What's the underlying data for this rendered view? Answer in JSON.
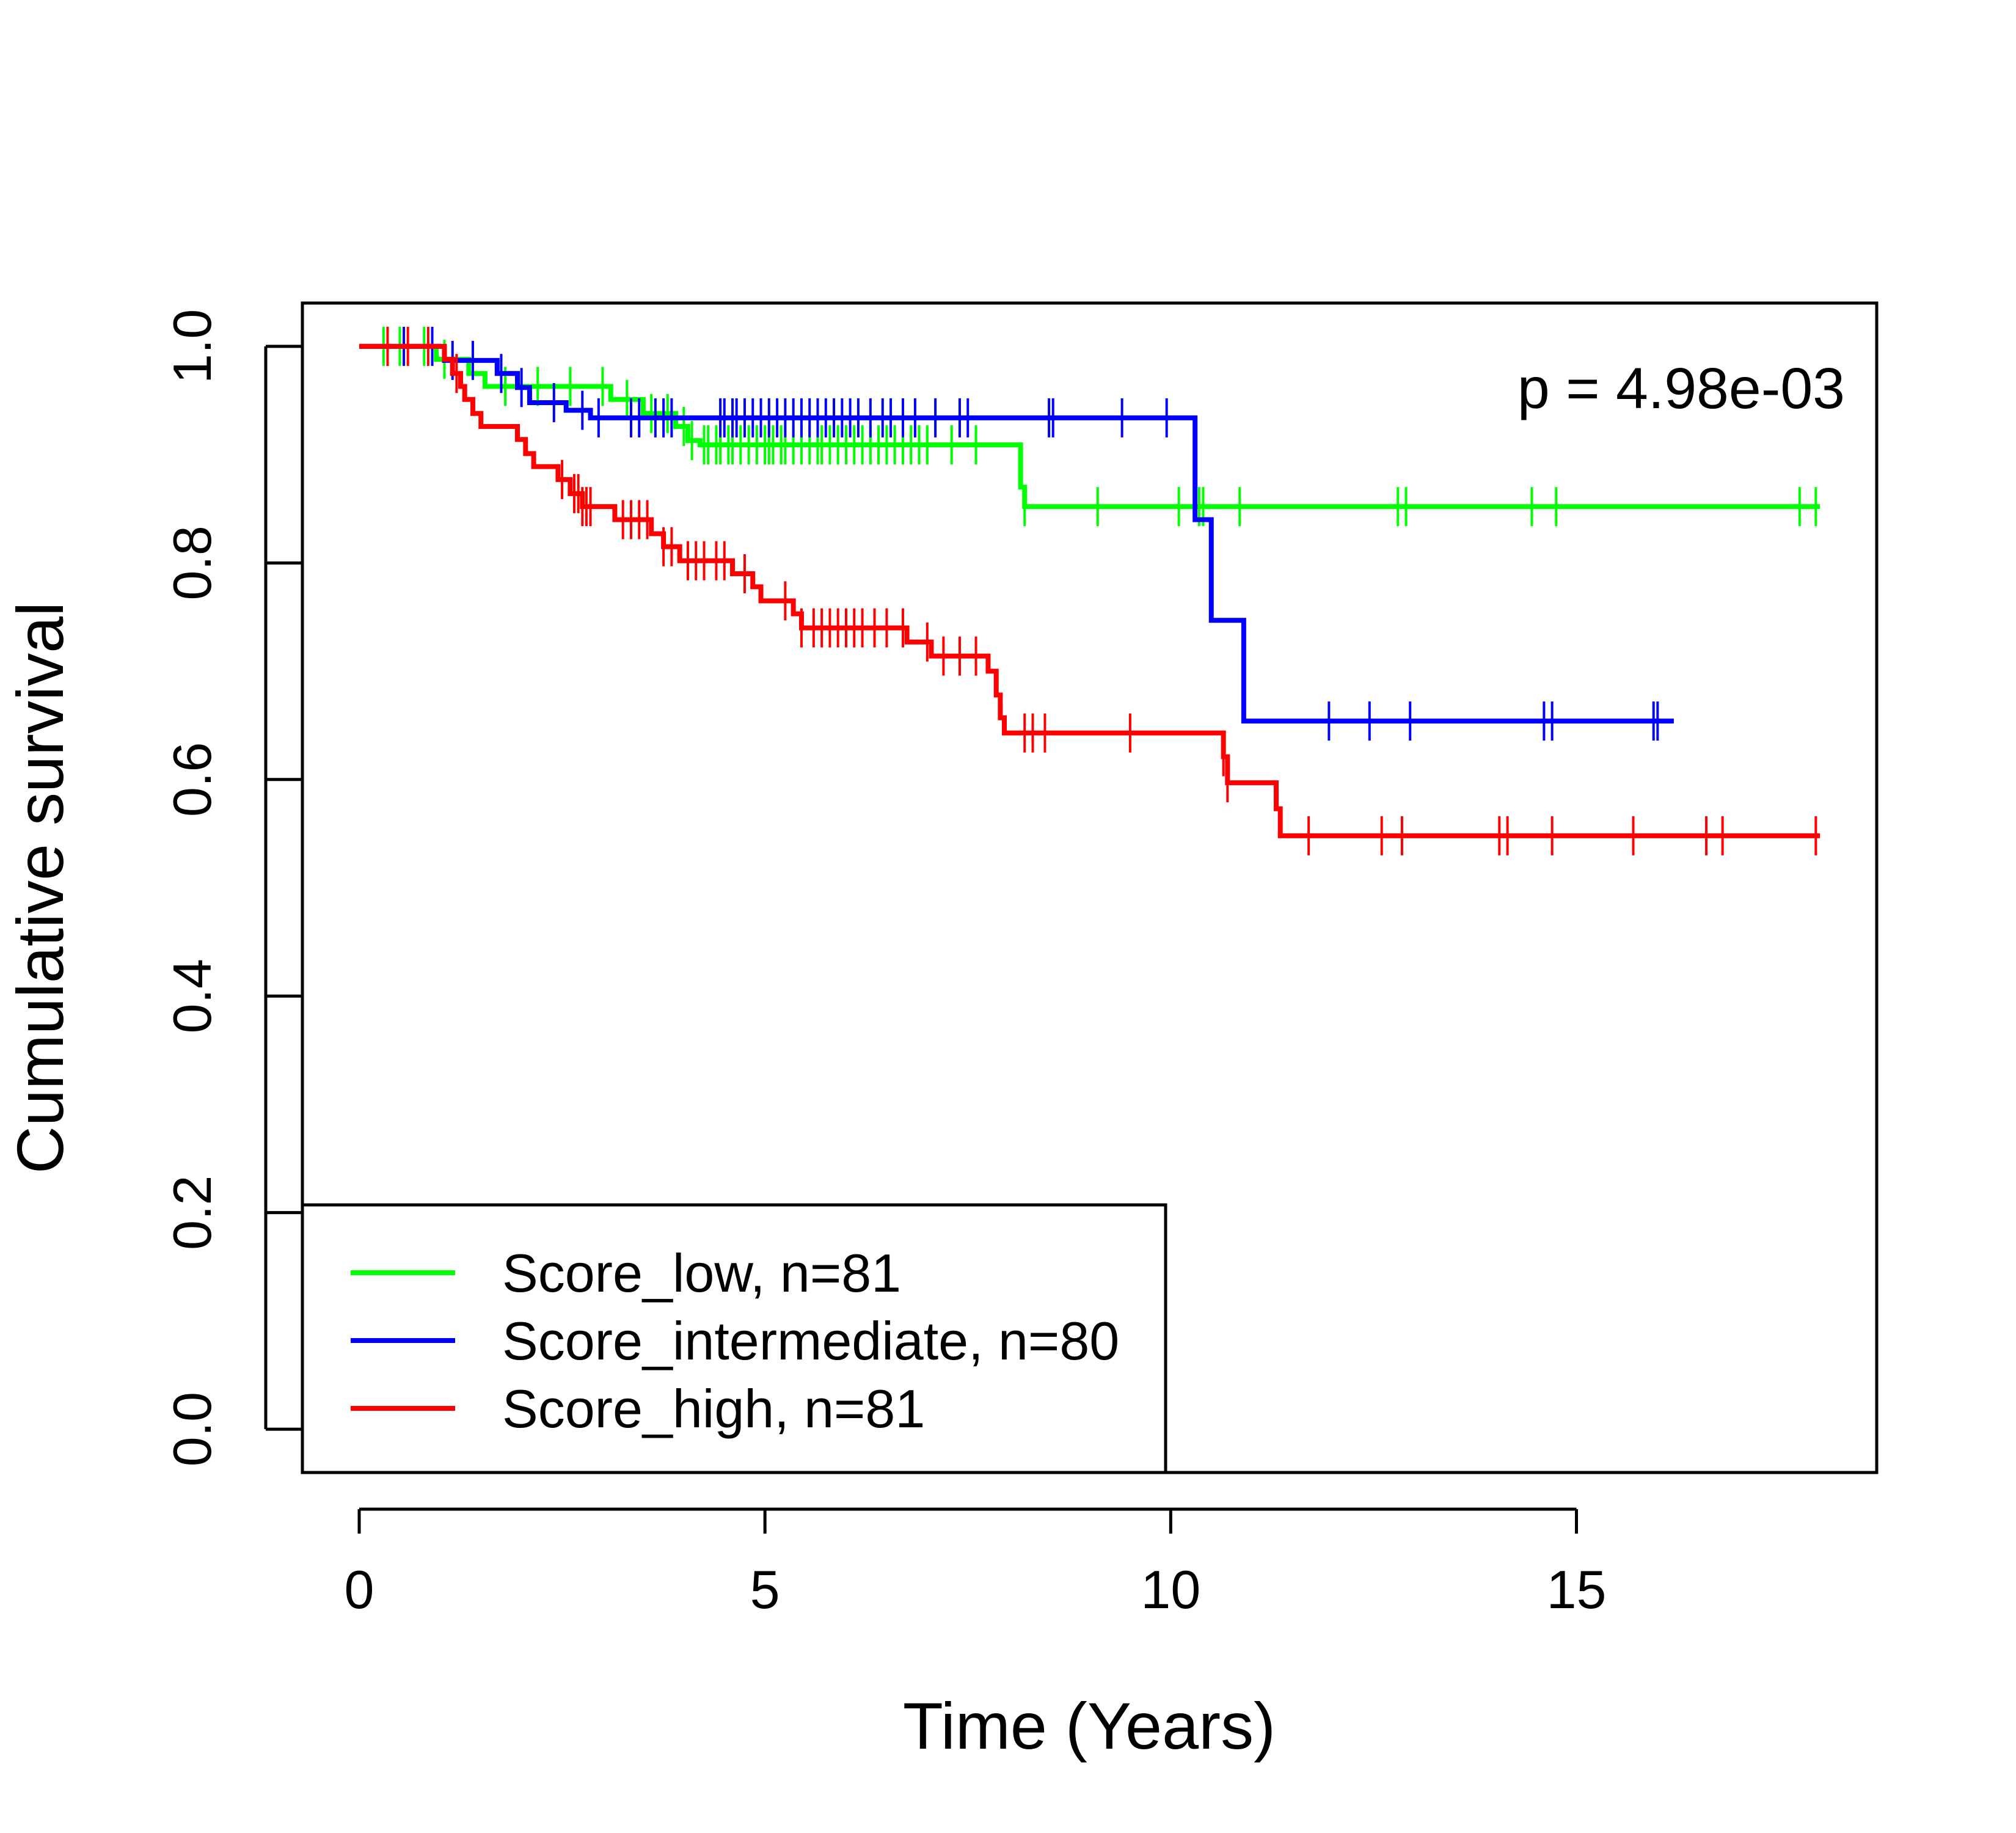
{
  "chart_data": {
    "type": "line",
    "subtype": "kaplan-meier",
    "title": "",
    "xlabel": "Time (Years)",
    "ylabel": "Cumulative survival",
    "xlim": [
      -0.7,
      18.7
    ],
    "ylim": [
      -0.04,
      1.04
    ],
    "xticks": [
      0,
      5,
      10,
      15
    ],
    "yticks": [
      0.0,
      0.2,
      0.4,
      0.6,
      0.8,
      1.0
    ],
    "xtick_labels": [
      "0",
      "5",
      "10",
      "15"
    ],
    "ytick_labels": [
      "0.0",
      "0.2",
      "0.4",
      "0.6",
      "0.8",
      "1.0"
    ],
    "grid": false,
    "legend_position": "bottom-left",
    "annotation": "p = 4.98e-03",
    "series": [
      {
        "name": "Score_low, n=81",
        "color": "#00ff00",
        "steps": [
          [
            0,
            1.0
          ],
          [
            0.95,
            0.988
          ],
          [
            1.35,
            0.975
          ],
          [
            1.55,
            0.963
          ],
          [
            3.1,
            0.951
          ],
          [
            3.5,
            0.938
          ],
          [
            3.9,
            0.926
          ],
          [
            4.05,
            0.913
          ],
          [
            4.2,
            0.909
          ],
          [
            8.15,
            0.87
          ],
          [
            8.2,
            0.852
          ],
          [
            18.0,
            0.852
          ]
        ],
        "censors": [
          0.3,
          0.5,
          0.8,
          1.05,
          1.8,
          2.2,
          2.6,
          3.0,
          3.3,
          3.6,
          3.8,
          4.0,
          4.1,
          4.25,
          4.3,
          4.4,
          4.45,
          4.55,
          4.6,
          4.7,
          4.8,
          4.9,
          5.0,
          5.05,
          5.1,
          5.2,
          5.25,
          5.35,
          5.45,
          5.55,
          5.65,
          5.7,
          5.8,
          5.9,
          6.0,
          6.1,
          6.2,
          6.3,
          6.4,
          6.5,
          6.6,
          6.7,
          6.8,
          6.9,
          7.0,
          7.3,
          7.6,
          8.2,
          9.1,
          10.1,
          10.35,
          10.4,
          10.85,
          12.8,
          12.9,
          14.45,
          14.75,
          17.75,
          17.95
        ]
      },
      {
        "name": "Score_intermediate, n=80",
        "color": "#0000ff",
        "steps": [
          [
            0,
            1.0
          ],
          [
            1.05,
            0.987
          ],
          [
            1.7,
            0.975
          ],
          [
            1.95,
            0.962
          ],
          [
            2.1,
            0.948
          ],
          [
            2.55,
            0.941
          ],
          [
            2.85,
            0.934
          ],
          [
            10.3,
            0.84
          ],
          [
            10.5,
            0.747
          ],
          [
            10.9,
            0.654
          ],
          [
            16.2,
            0.654
          ]
        ],
        "censors": [
          0.35,
          0.55,
          0.9,
          1.15,
          1.4,
          1.75,
          2.0,
          2.4,
          2.75,
          2.95,
          3.35,
          3.45,
          3.65,
          3.75,
          3.85,
          4.45,
          4.5,
          4.6,
          4.65,
          4.75,
          4.85,
          4.95,
          5.05,
          5.15,
          5.25,
          5.35,
          5.45,
          5.55,
          5.65,
          5.75,
          5.85,
          5.95,
          6.05,
          6.15,
          6.3,
          6.45,
          6.55,
          6.7,
          6.85,
          7.1,
          7.4,
          7.5,
          8.5,
          8.55,
          9.4,
          9.95,
          11.95,
          12.45,
          12.95,
          14.6,
          14.7,
          15.95,
          16.0
        ]
      },
      {
        "name": "Score_high, n=81",
        "color": "#ff0000",
        "steps": [
          [
            0,
            1.0
          ],
          [
            1.05,
            0.988
          ],
          [
            1.15,
            0.975
          ],
          [
            1.25,
            0.963
          ],
          [
            1.3,
            0.951
          ],
          [
            1.4,
            0.938
          ],
          [
            1.5,
            0.926
          ],
          [
            1.95,
            0.914
          ],
          [
            2.05,
            0.901
          ],
          [
            2.15,
            0.889
          ],
          [
            2.45,
            0.877
          ],
          [
            2.6,
            0.864
          ],
          [
            2.75,
            0.852
          ],
          [
            3.15,
            0.84
          ],
          [
            3.6,
            0.827
          ],
          [
            3.75,
            0.815
          ],
          [
            3.95,
            0.802
          ],
          [
            4.6,
            0.79
          ],
          [
            4.85,
            0.778
          ],
          [
            4.95,
            0.765
          ],
          [
            5.35,
            0.753
          ],
          [
            5.45,
            0.74
          ],
          [
            6.75,
            0.727
          ],
          [
            7.05,
            0.714
          ],
          [
            7.75,
            0.7
          ],
          [
            7.85,
            0.678
          ],
          [
            7.9,
            0.657
          ],
          [
            7.95,
            0.643
          ],
          [
            10.65,
            0.621
          ],
          [
            10.7,
            0.597
          ],
          [
            11.3,
            0.573
          ],
          [
            11.35,
            0.548
          ],
          [
            18.0,
            0.548
          ]
        ],
        "censors": [
          0.35,
          0.6,
          0.85,
          1.2,
          2.5,
          2.65,
          2.7,
          2.75,
          2.8,
          2.85,
          3.25,
          3.35,
          3.45,
          3.55,
          3.75,
          3.85,
          4.05,
          4.15,
          4.25,
          4.4,
          4.5,
          4.75,
          5.25,
          5.45,
          5.6,
          5.7,
          5.8,
          5.9,
          6.0,
          6.1,
          6.2,
          6.35,
          6.5,
          6.7,
          7.0,
          7.2,
          7.4,
          7.6,
          8.2,
          8.3,
          8.45,
          9.5,
          10.65,
          10.7,
          11.7,
          12.6,
          12.85,
          14.05,
          14.15,
          14.7,
          15.7,
          16.6,
          16.8,
          17.95
        ]
      }
    ]
  }
}
